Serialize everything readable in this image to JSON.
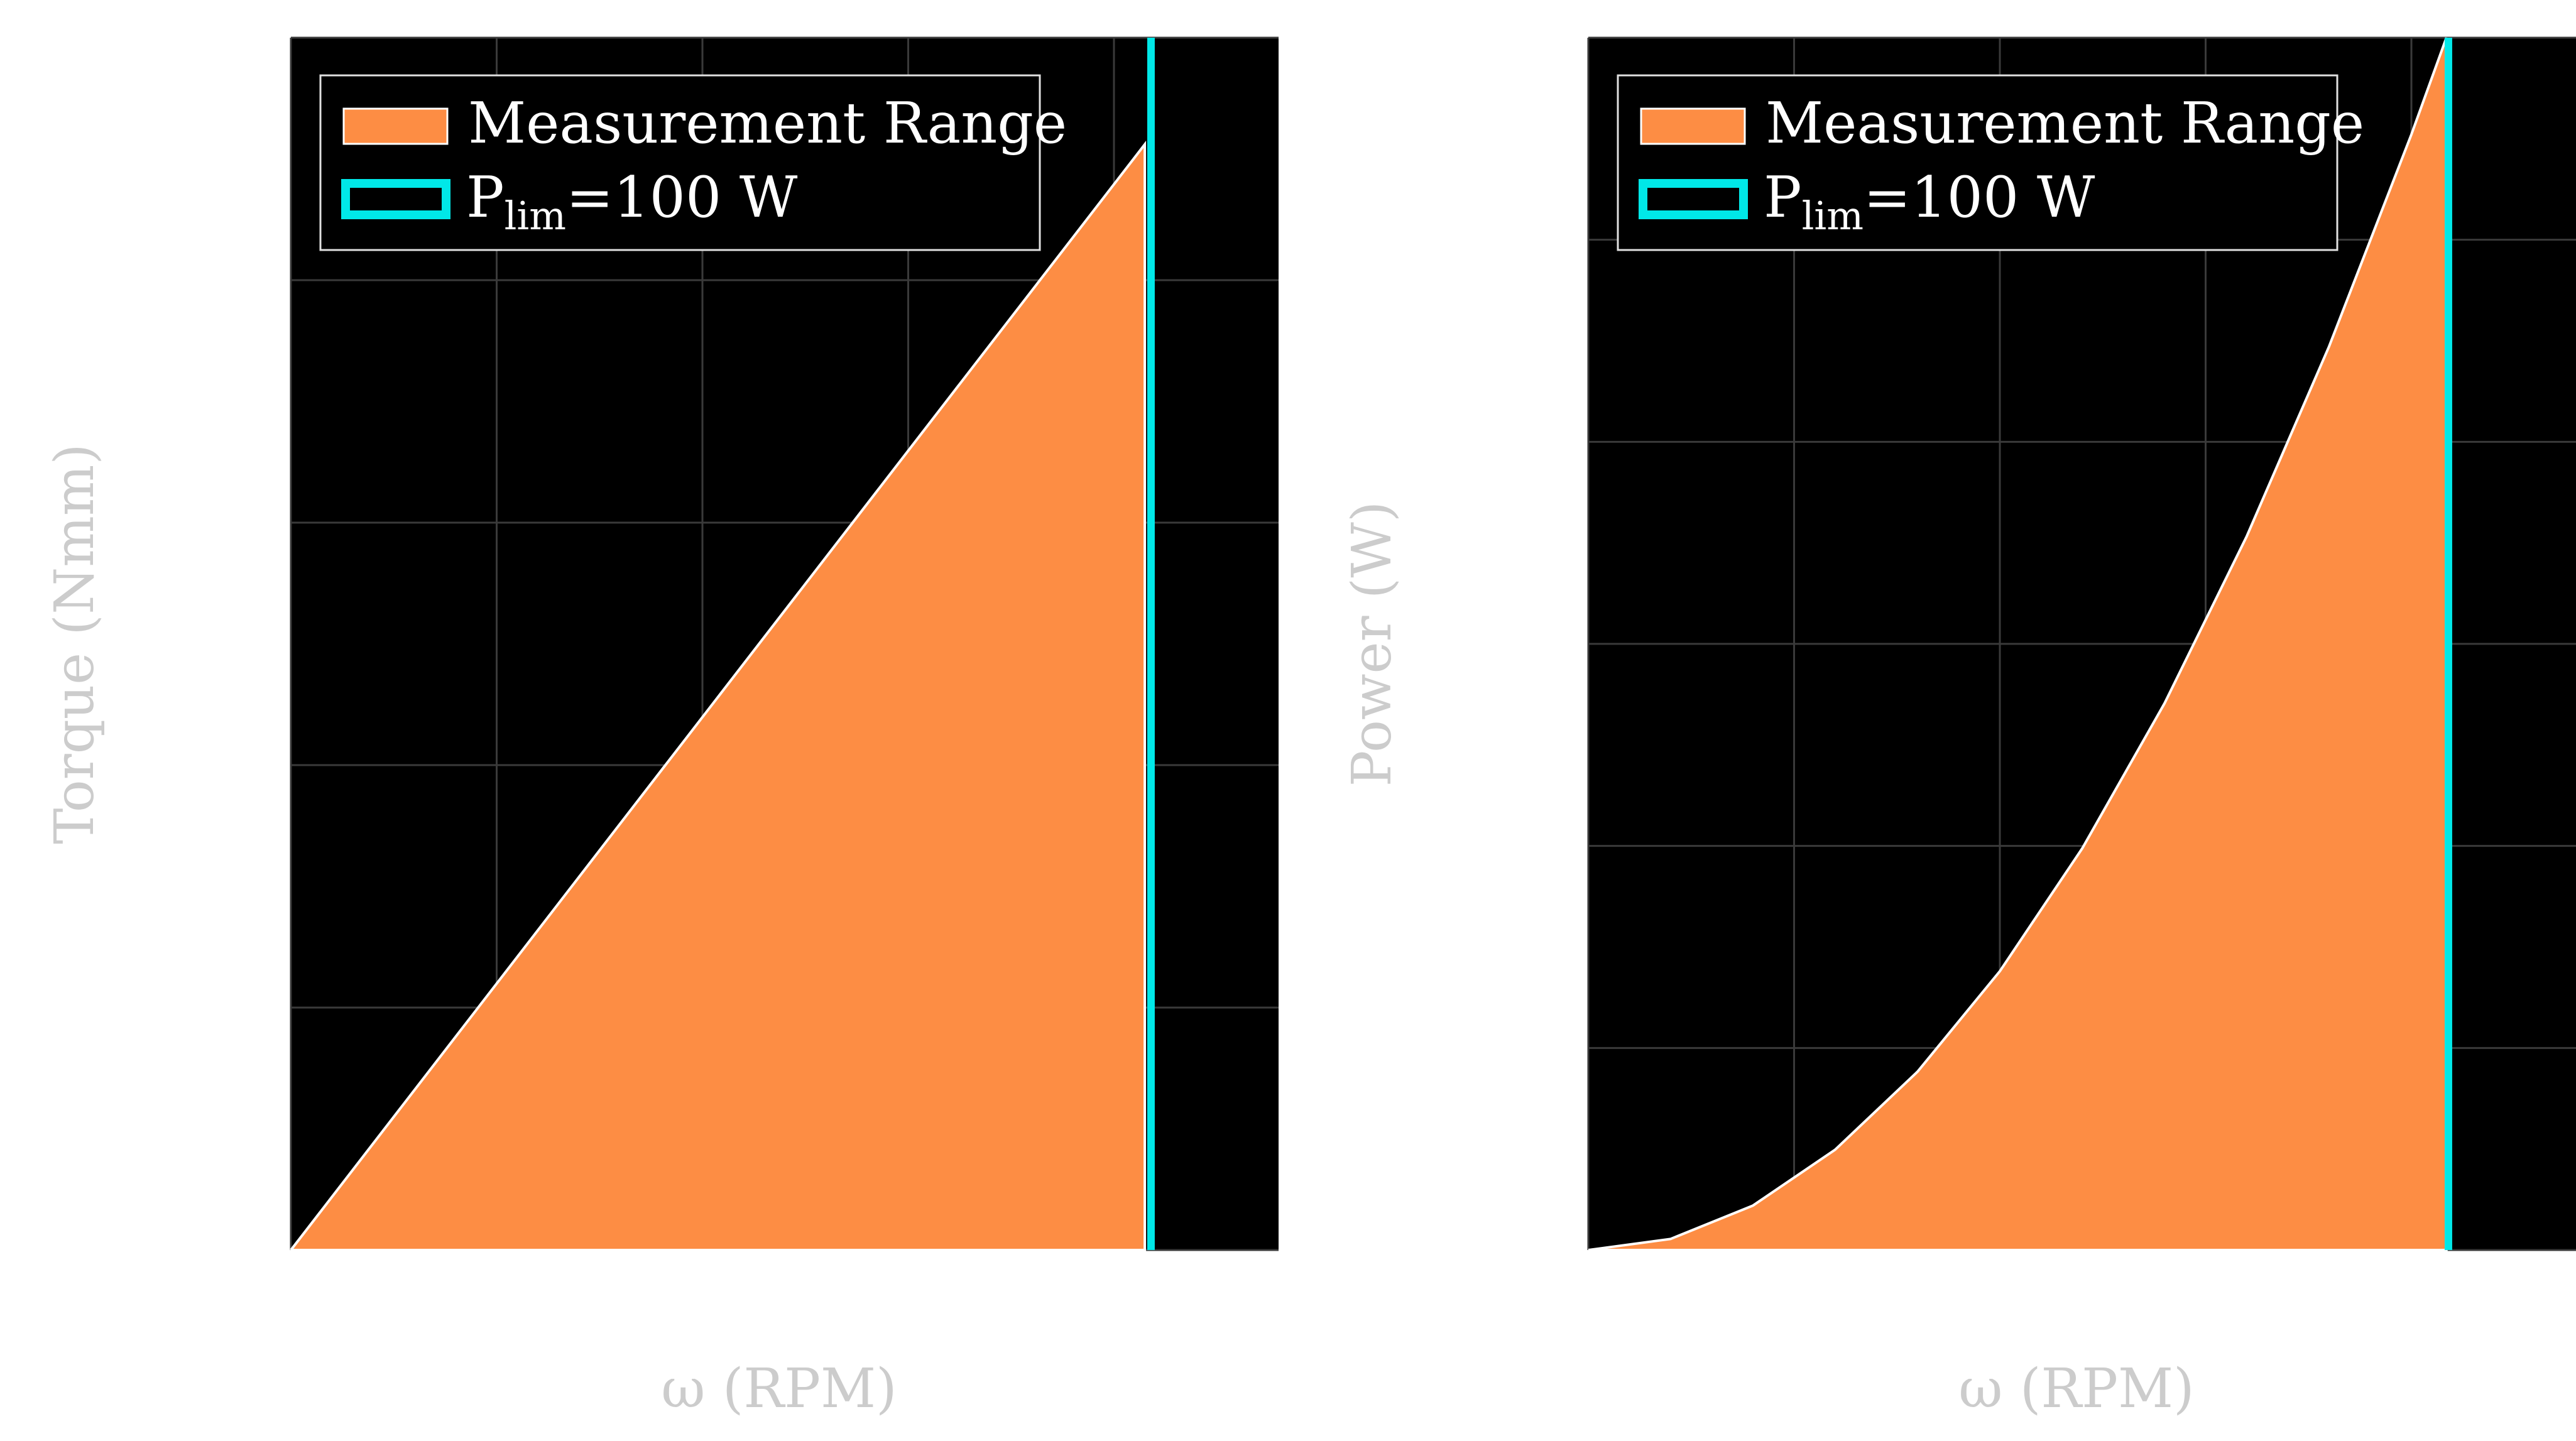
{
  "chart_data": [
    {
      "type": "area",
      "title": "",
      "xlabel": "ω (RPM)",
      "ylabel": "Torque (Nmm)",
      "xlim": [
        0,
        4.8
      ],
      "ylim": [
        0,
        5
      ],
      "grid": true,
      "background_color": "#000000",
      "grid_color": "#3a3a3a",
      "legend_placement": "top-left",
      "legend": [
        {
          "label": "Measurement Range",
          "type": "area",
          "color": "#fd8d44"
        },
        {
          "label_main": "P",
          "label_sub": "lim",
          "label_rest": "=100 W",
          "type": "vline",
          "color": "#00e8e8"
        }
      ],
      "series": [
        {
          "name": "Measurement Range",
          "color": "#fd8d44",
          "edge_color": "#ffffff",
          "x": [
            0,
            4.15
          ],
          "y": [
            0,
            4.56
          ]
        }
      ],
      "vline": {
        "x": 4.18,
        "color": "#00e8e8"
      }
    },
    {
      "type": "area",
      "title": "",
      "xlabel": "ω (RPM)",
      "ylabel": "Power (W)",
      "xlim": [
        0,
        4.8
      ],
      "ylim": [
        0,
        6
      ],
      "grid": true,
      "background_color": "#000000",
      "grid_color": "#3a3a3a",
      "legend_placement": "top-left",
      "legend": [
        {
          "label": "Measurement Range",
          "type": "area",
          "color": "#fd8d44"
        },
        {
          "label_main": "P",
          "label_sub": "lim",
          "label_rest": "=100 W",
          "type": "vline",
          "color": "#00e8e8"
        }
      ],
      "series": [
        {
          "name": "Measurement Range",
          "color": "#fd8d44",
          "edge_color": "#ffffff",
          "curve": "quadratic",
          "x": [
            0,
            0.4,
            0.8,
            1.2,
            1.6,
            2.0,
            2.4,
            2.8,
            3.2,
            3.6,
            4.0,
            4.17
          ],
          "y": [
            0,
            0.055,
            0.22,
            0.497,
            0.883,
            1.38,
            1.987,
            2.705,
            3.533,
            4.472,
            5.521,
            6.0
          ]
        }
      ],
      "vline": {
        "x": 4.18,
        "color": "#00e8e8"
      }
    }
  ]
}
